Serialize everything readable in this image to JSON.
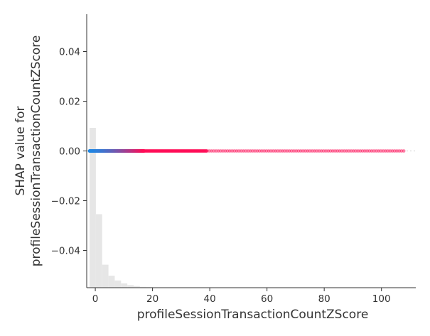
{
  "chart_data": {
    "type": "scatter",
    "title": "",
    "xlabel": "profileSessionTransactionCountZScore",
    "ylabel_line1": "SHAP value for",
    "ylabel_line2": "profileSessionTransactionCountZScore",
    "xlim": [
      -3,
      112
    ],
    "ylim": [
      -0.055,
      0.055
    ],
    "x_ticks": [
      0,
      20,
      40,
      60,
      80,
      100
    ],
    "x_tick_labels": [
      "0",
      "20",
      "40",
      "60",
      "80",
      "100"
    ],
    "y_ticks": [
      -0.04,
      -0.02,
      0.0,
      0.02,
      0.04
    ],
    "y_tick_labels": [
      "−0.04",
      "−0.02",
      "0.00",
      "0.02",
      "0.04"
    ],
    "grid": false,
    "scatter": {
      "y_value": 0.0,
      "x_dense_range": [
        -2,
        17
      ],
      "x_medium_range": [
        17,
        39
      ],
      "x_sparse_range": [
        39,
        108.5
      ],
      "color_low": "#1E88E5",
      "color_high": "#FF0D57"
    },
    "histogram": {
      "color": "#e6e6e6",
      "bin_width": 2.2,
      "bins": [
        {
          "x0": -2.0,
          "rel_height": 1.0
        },
        {
          "x0": 0.2,
          "rel_height": 0.46
        },
        {
          "x0": 2.4,
          "rel_height": 0.144
        },
        {
          "x0": 4.6,
          "rel_height": 0.075
        },
        {
          "x0": 6.8,
          "rel_height": 0.045
        },
        {
          "x0": 9.0,
          "rel_height": 0.027
        },
        {
          "x0": 11.2,
          "rel_height": 0.016
        },
        {
          "x0": 13.4,
          "rel_height": 0.01
        },
        {
          "x0": 15.6,
          "rel_height": 0.006
        },
        {
          "x0": 17.8,
          "rel_height": 0.004
        }
      ]
    }
  }
}
